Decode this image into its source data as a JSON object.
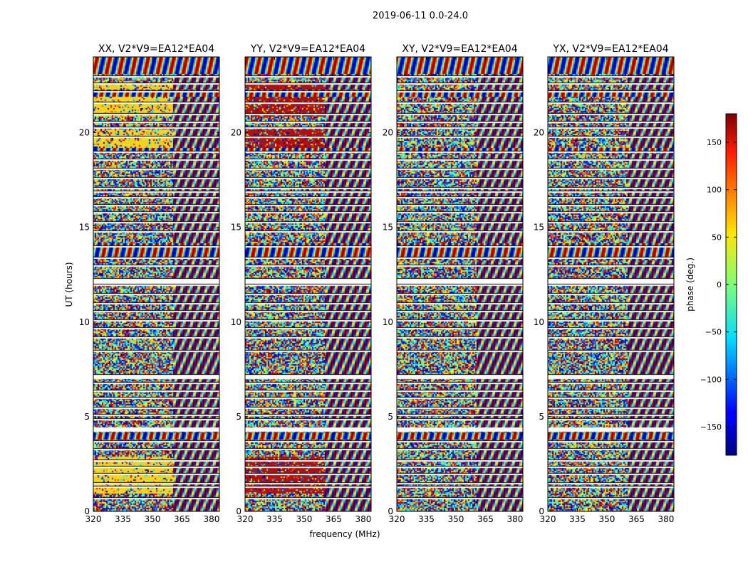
{
  "chart_data": {
    "type": "heatmap",
    "title": "2019-06-11 0.0-24.0",
    "xlabel": "frequency (MHz)",
    "ylabel": "UT (hours)",
    "xlim": [
      320,
      384
    ],
    "ylim": [
      0,
      24
    ],
    "xticks": [
      "320",
      "335",
      "350",
      "365",
      "380"
    ],
    "yticks": [
      "0",
      "5",
      "10",
      "15",
      "20"
    ],
    "colorscale": "jet",
    "colorbar": {
      "label": "phase (deg.)",
      "range": [
        -180,
        180
      ],
      "ticks": [
        "−150",
        "−100",
        "−50",
        "0",
        "50",
        "100",
        "150"
      ]
    },
    "panels": [
      {
        "title": "XX, V2*V9=EA12*EA04",
        "band_color": "#f7d21a"
      },
      {
        "title": "YY, V2*V9=EA12*EA04",
        "band_color": "#b01010"
      },
      {
        "title": "XY, V2*V9=EA12*EA04",
        "band_color": ""
      },
      {
        "title": "YX, V2*V9=EA12*EA04",
        "band_color": ""
      }
    ],
    "flagged_ut_hours": [
      0.7,
      1.3,
      1.5,
      2.0,
      2.35,
      2.7,
      3.3,
      3.7,
      4.3,
      4.35,
      4.9,
      5.1,
      5.5,
      6.0,
      6.4,
      6.8,
      7.1,
      7.2,
      8.5,
      9.2,
      9.7,
      10.1,
      10.6,
      11.0,
      11.5,
      12.0,
      12.1,
      12.3,
      13.0,
      13.4,
      14.0,
      14.8,
      15.3,
      15.8,
      16.2,
      16.6,
      16.9,
      17.1,
      17.6,
      18.1,
      18.6,
      19.0,
      19.8,
      20.3,
      20.6,
      21.0,
      21.6,
      22.2,
      22.6,
      23.0
    ],
    "fringe_bands_ut": [
      [
        3.8,
        4.2
      ],
      [
        13.3,
        14.2
      ],
      [
        18.9,
        19.2
      ],
      [
        21.9,
        22.3
      ],
      [
        23.1,
        24.0
      ]
    ]
  }
}
